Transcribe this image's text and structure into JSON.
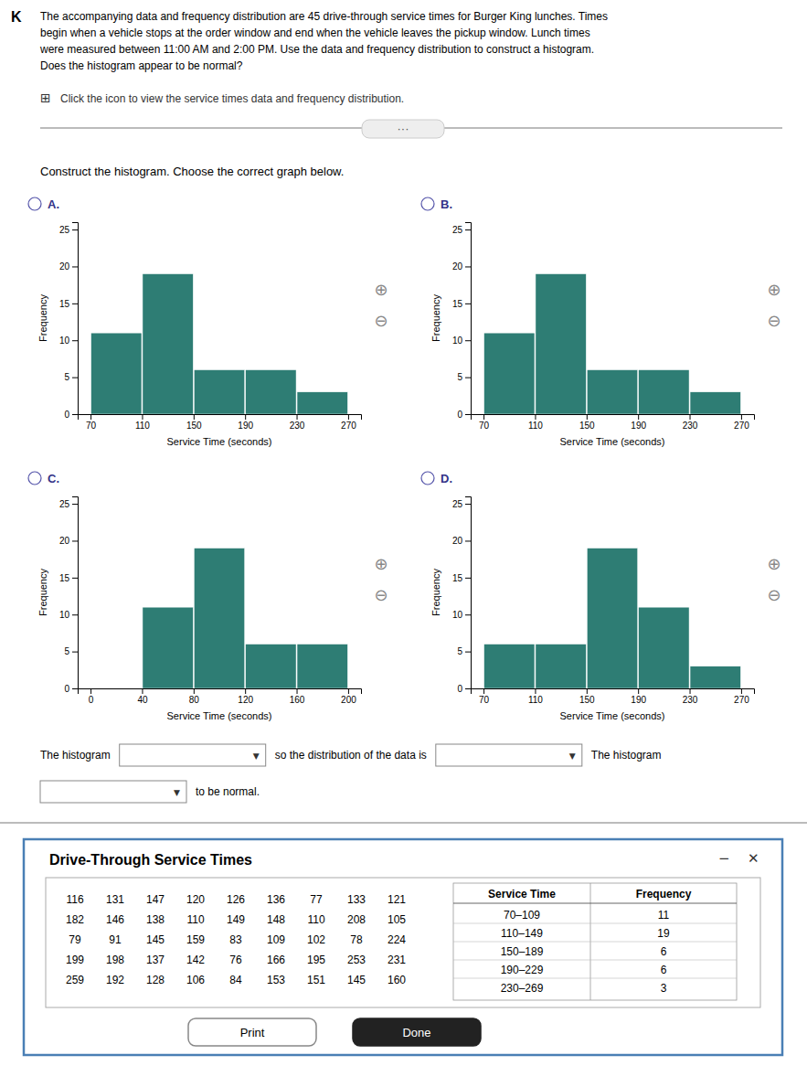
{
  "page": {
    "back_icon": "K",
    "title_lines": [
      "The accompanying data and frequency distribution are 45 drive-through service times for Burger King lunches. Times",
      "begin when a vehicle stops at the order window and end when the vehicle leaves the pickup window. Lunch times",
      "were measured between 11:00 AM and 2:00 PM. Use the data and frequency distribution to construct a histogram.",
      "Does the histogram appear to be normal?"
    ],
    "grid_icon": "⊞",
    "icon_text": "Click the icon to view the service times data and frequency distribution.",
    "more_button": "···",
    "construct_text": "Construct the histogram. Choose the correct graph below.",
    "zoom_icons": [
      "⊕",
      "⊖"
    ],
    "dropdown_labels": [
      "The histogram",
      "so the distribution of the data is",
      "The histogram",
      "to be normal."
    ],
    "dropdown_arrow": "▼"
  },
  "chart_data": [
    {
      "type": "histogram",
      "title": "A.",
      "xlabel": "Service Time (seconds)",
      "ylabel": "Frequency",
      "bins": [
        70,
        110,
        150,
        190,
        230,
        270
      ],
      "values": [
        11,
        19,
        6,
        6,
        3
      ],
      "color": "#2e7d74",
      "xlim": [
        60,
        280
      ],
      "xticks": [
        70,
        110,
        150,
        190,
        230,
        270
      ],
      "ylim": [
        0,
        26
      ],
      "yticks": [
        0,
        5,
        10,
        15,
        20,
        25
      ]
    },
    {
      "type": "histogram",
      "title": "B.",
      "xlabel": "Service Time (seconds)",
      "ylabel": "Frequency",
      "bins": [
        70,
        110,
        150,
        190,
        230,
        270
      ],
      "values": [
        11,
        19,
        6,
        6,
        3
      ],
      "color": "#2e7d74",
      "xlim": [
        60,
        280
      ],
      "xticks": [
        70,
        110,
        150,
        190,
        230,
        270
      ],
      "ylim": [
        0,
        26
      ],
      "yticks": [
        0,
        5,
        10,
        15,
        20,
        25
      ]
    },
    {
      "type": "histogram",
      "title": "C.",
      "xlabel": "Service Time (seconds)",
      "ylabel": "Frequency",
      "bins": [
        40,
        80,
        120,
        160,
        200
      ],
      "values": [
        11,
        19,
        6,
        6
      ],
      "color": "#2e7d74",
      "xlim": [
        -10,
        210
      ],
      "xticks": [
        0,
        40,
        80,
        120,
        160,
        200
      ],
      "ylim": [
        0,
        26
      ],
      "yticks": [
        0,
        5,
        10,
        15,
        20,
        25
      ]
    },
    {
      "type": "histogram",
      "title": "D.",
      "xlabel": "Service Time (seconds)",
      "ylabel": "Frequency",
      "bins": [
        70,
        110,
        150,
        190,
        230,
        270
      ],
      "values": [
        6,
        6,
        19,
        11,
        3
      ],
      "color": "#2e7d74",
      "xlim": [
        60,
        280
      ],
      "xticks": [
        70,
        110,
        150,
        190,
        230,
        270
      ],
      "ylim": [
        0,
        26
      ],
      "yticks": [
        0,
        5,
        10,
        15,
        20,
        25
      ]
    }
  ],
  "data_table": {
    "title": "Drive-Through Service Times",
    "controls": [
      "−",
      "✕"
    ],
    "raw_data": [
      [
        116,
        131,
        147,
        120,
        126,
        136,
        77,
        133,
        121
      ],
      [
        182,
        146,
        138,
        110,
        149,
        148,
        110,
        208,
        105
      ],
      [
        79,
        91,
        145,
        159,
        83,
        109,
        102,
        78,
        224
      ],
      [
        199,
        198,
        137,
        142,
        76,
        166,
        195,
        253,
        231
      ],
      [
        259,
        192,
        128,
        106,
        84,
        153,
        151,
        145,
        160
      ]
    ],
    "columns": [
      "Service Time",
      "Frequency"
    ],
    "service_times": [
      "70–109",
      "110–149",
      "150–189",
      "190–229",
      "230–269"
    ],
    "frequencies": [
      11,
      19,
      6,
      6,
      3
    ],
    "buttons": [
      "Print",
      "Done"
    ]
  }
}
